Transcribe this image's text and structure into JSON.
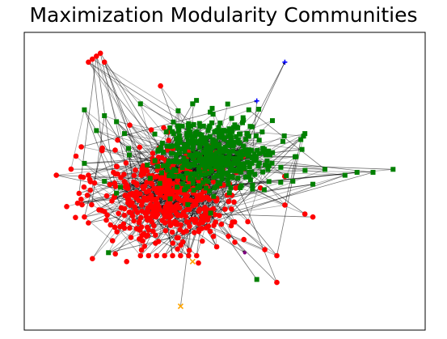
{
  "chart_data": {
    "type": "scatter",
    "title": "Maximization Modularity Communities",
    "xlabel": "",
    "ylabel": "",
    "axes_ticks": "none",
    "grid": false,
    "legend": "none",
    "edge_color": "#000000",
    "series": [
      {
        "marker": "circle",
        "color": "#ff0000",
        "center": [
          0.36,
          0.45
        ],
        "spread": [
          0.09,
          0.085
        ],
        "node_count": 520,
        "outliers": [
          [
            0.16,
            0.9
          ],
          [
            0.17,
            0.91
          ],
          [
            0.18,
            0.92
          ],
          [
            0.19,
            0.93
          ],
          [
            0.2,
            0.9
          ],
          [
            0.34,
            0.82
          ],
          [
            0.08,
            0.52
          ],
          [
            0.16,
            0.52
          ],
          [
            0.15,
            0.38
          ],
          [
            0.16,
            0.36
          ],
          [
            0.17,
            0.24
          ],
          [
            0.29,
            0.25
          ],
          [
            0.31,
            0.25
          ],
          [
            0.33,
            0.25
          ],
          [
            0.35,
            0.25
          ],
          [
            0.37,
            0.25
          ],
          [
            0.39,
            0.25
          ],
          [
            0.41,
            0.25
          ],
          [
            0.43,
            0.25
          ],
          [
            0.6,
            0.27
          ],
          [
            0.63,
            0.25
          ],
          [
            0.65,
            0.42
          ],
          [
            0.7,
            0.39
          ],
          [
            0.72,
            0.38
          ],
          [
            0.63,
            0.16
          ],
          [
            0.48,
            0.28
          ]
        ]
      },
      {
        "marker": "square",
        "color": "#008000",
        "center": [
          0.48,
          0.59
        ],
        "spread": [
          0.075,
          0.06
        ],
        "node_count": 460,
        "outliers": [
          [
            0.15,
            0.74
          ],
          [
            0.18,
            0.67
          ],
          [
            0.2,
            0.72
          ],
          [
            0.23,
            0.7
          ],
          [
            0.29,
            0.76
          ],
          [
            0.42,
            0.76
          ],
          [
            0.56,
            0.74
          ],
          [
            0.69,
            0.64
          ],
          [
            0.7,
            0.66
          ],
          [
            0.75,
            0.54
          ],
          [
            0.8,
            0.52
          ],
          [
            0.83,
            0.53
          ],
          [
            0.87,
            0.53
          ],
          [
            0.92,
            0.54
          ],
          [
            0.67,
            0.5
          ],
          [
            0.72,
            0.49
          ],
          [
            0.2,
            0.5
          ],
          [
            0.24,
            0.48
          ],
          [
            0.23,
            0.46
          ],
          [
            0.21,
            0.26
          ],
          [
            0.58,
            0.17
          ],
          [
            0.15,
            0.56
          ],
          [
            0.26,
            0.61
          ],
          [
            0.25,
            0.66
          ]
        ]
      },
      {
        "marker": "plus",
        "color": "#0000ff",
        "node_count": 2,
        "points": [
          [
            0.65,
            0.9
          ],
          [
            0.58,
            0.77
          ]
        ]
      },
      {
        "marker": "x",
        "color": "#ffa500",
        "node_count": 2,
        "points": [
          [
            0.39,
            0.08
          ],
          [
            0.42,
            0.23
          ]
        ]
      },
      {
        "marker": "circle-small",
        "color": "#800080",
        "node_count": 1,
        "points": [
          [
            0.55,
            0.26
          ]
        ]
      }
    ]
  }
}
